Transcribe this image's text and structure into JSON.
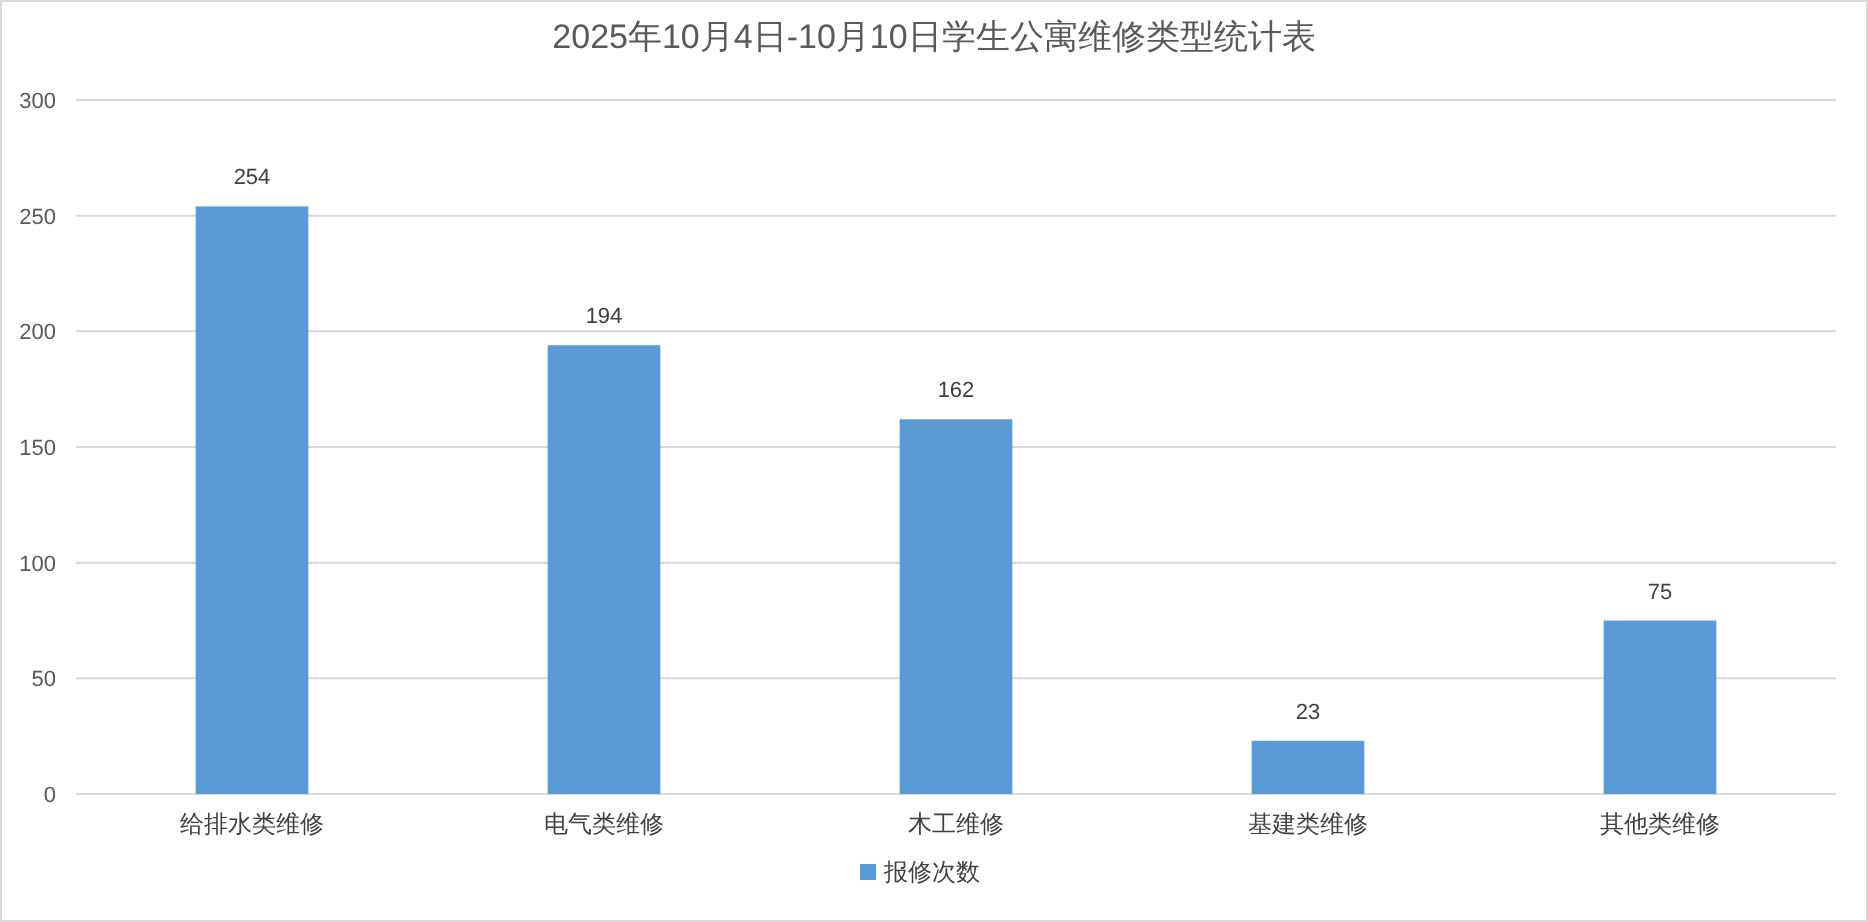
{
  "chart_data": {
    "type": "bar",
    "title": "2025年10月4日-10月10日学生公寓维修类型统计表",
    "categories": [
      "给排水类维修",
      "电气类维修",
      "木工维修",
      "基建类维修",
      "其他类维修"
    ],
    "series": [
      {
        "name": "报修次数",
        "color": "#5b9bd5",
        "values": [
          254,
          194,
          162,
          23,
          75
        ]
      }
    ],
    "ylim": [
      0,
      300
    ],
    "yticks": [
      0,
      50,
      100,
      150,
      200,
      250,
      300
    ],
    "grid": "y",
    "legend": "bottom",
    "data_labels": true
  }
}
